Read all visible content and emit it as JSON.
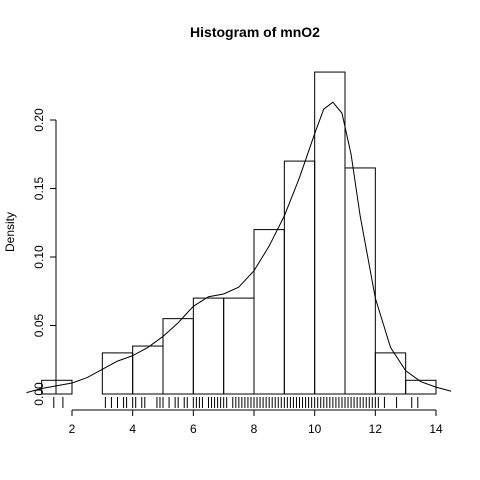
{
  "chart_data": {
    "type": "histogram",
    "title": "Histogram of  mnO2",
    "xlabel": "",
    "ylabel": "Density",
    "xlim": [
      0.5,
      14.5
    ],
    "ylim": [
      0,
      0.22
    ],
    "x_ticks": [
      2,
      4,
      6,
      8,
      10,
      12,
      14
    ],
    "x_tick_labels": [
      "2",
      "4",
      "6",
      "8",
      "10",
      "12",
      "14"
    ],
    "y_ticks": [
      0,
      0.05,
      0.1,
      0.15,
      0.2
    ],
    "y_tick_labels": [
      "0.00",
      "0.05",
      "0.10",
      "0.15",
      "0.20"
    ],
    "bins": [
      {
        "x0": 1,
        "x1": 2,
        "density": 0.01
      },
      {
        "x0": 2,
        "x1": 3,
        "density": 0.0
      },
      {
        "x0": 3,
        "x1": 4,
        "density": 0.03
      },
      {
        "x0": 4,
        "x1": 5,
        "density": 0.035
      },
      {
        "x0": 5,
        "x1": 6,
        "density": 0.055
      },
      {
        "x0": 6,
        "x1": 7,
        "density": 0.07
      },
      {
        "x0": 7,
        "x1": 8,
        "density": 0.07
      },
      {
        "x0": 8,
        "x1": 9,
        "density": 0.12
      },
      {
        "x0": 9,
        "x1": 10,
        "density": 0.17
      },
      {
        "x0": 10,
        "x1": 11,
        "density": 0.235
      },
      {
        "x0": 11,
        "x1": 12,
        "density": 0.165
      },
      {
        "x0": 12,
        "x1": 13,
        "density": 0.03
      },
      {
        "x0": 13,
        "x1": 14,
        "density": 0.01
      }
    ],
    "density_curve": {
      "x": [
        0.5,
        1.0,
        1.5,
        2.0,
        2.5,
        3.0,
        3.5,
        4.0,
        4.5,
        5.0,
        5.5,
        6.0,
        6.5,
        7.0,
        7.5,
        8.0,
        8.5,
        9.0,
        9.5,
        10.0,
        10.3,
        10.6,
        10.9,
        11.2,
        11.5,
        12.0,
        12.5,
        13.0,
        13.5,
        14.0,
        14.5
      ],
      "y": [
        0.001,
        0.004,
        0.006,
        0.008,
        0.012,
        0.018,
        0.024,
        0.028,
        0.034,
        0.042,
        0.052,
        0.064,
        0.071,
        0.073,
        0.078,
        0.09,
        0.108,
        0.13,
        0.158,
        0.19,
        0.208,
        0.213,
        0.205,
        0.175,
        0.13,
        0.07,
        0.034,
        0.017,
        0.009,
        0.005,
        0.002
      ]
    },
    "rug": [
      1.4,
      1.7,
      3.1,
      3.3,
      3.5,
      3.7,
      3.8,
      4.0,
      4.1,
      4.3,
      4.4,
      4.8,
      4.9,
      5.0,
      5.2,
      5.4,
      5.5,
      5.7,
      5.8,
      6.0,
      6.1,
      6.2,
      6.3,
      6.5,
      6.6,
      6.7,
      6.8,
      6.9,
      7.0,
      7.1,
      7.3,
      7.4,
      7.5,
      7.6,
      7.7,
      7.8,
      7.9,
      8.0,
      8.1,
      8.2,
      8.3,
      8.4,
      8.5,
      8.6,
      8.7,
      8.8,
      8.9,
      9.0,
      9.1,
      9.2,
      9.3,
      9.4,
      9.5,
      9.6,
      9.7,
      9.8,
      9.9,
      10.0,
      10.1,
      10.2,
      10.3,
      10.4,
      10.5,
      10.6,
      10.7,
      10.8,
      10.9,
      11.0,
      11.1,
      11.2,
      11.3,
      11.4,
      11.5,
      11.6,
      11.7,
      11.8,
      11.9,
      12.0,
      12.1,
      12.3,
      12.7,
      13.2,
      13.4
    ]
  }
}
